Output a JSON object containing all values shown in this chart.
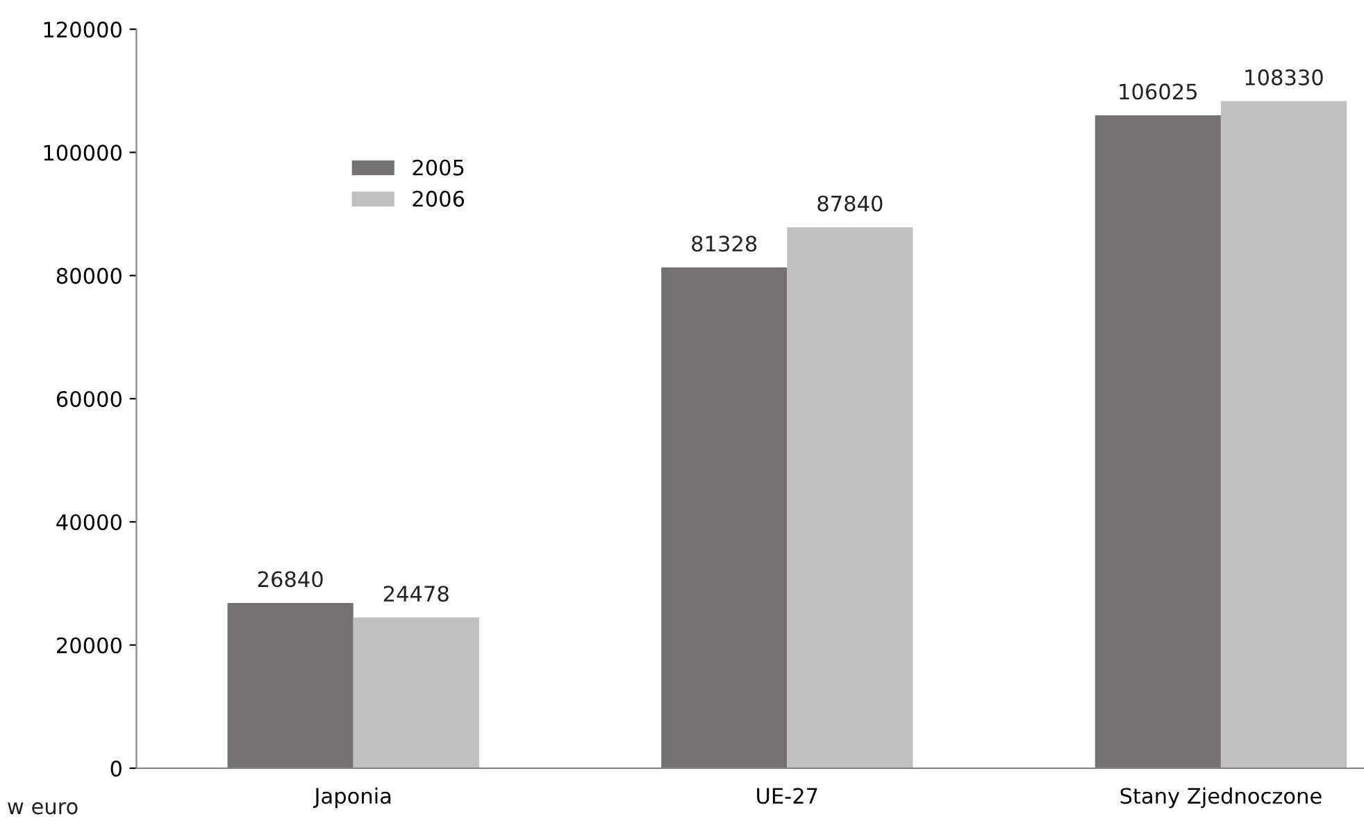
{
  "chart_data": {
    "type": "bar",
    "categories": [
      "Japonia",
      "UE-27",
      "Stany Zjednoczone"
    ],
    "series": [
      {
        "name": "2005",
        "color": "#767171",
        "values": [
          26840,
          81328,
          106025
        ]
      },
      {
        "name": "2006",
        "color": "#bfbfbf",
        "values": [
          24478,
          87840,
          108330
        ]
      }
    ],
    "ylim": [
      0,
      120000
    ],
    "yticks": [
      0,
      20000,
      40000,
      60000,
      80000,
      100000,
      120000
    ],
    "data_labels": true,
    "grid": false,
    "legend": "top left",
    "annotations": [
      "w euro"
    ]
  }
}
